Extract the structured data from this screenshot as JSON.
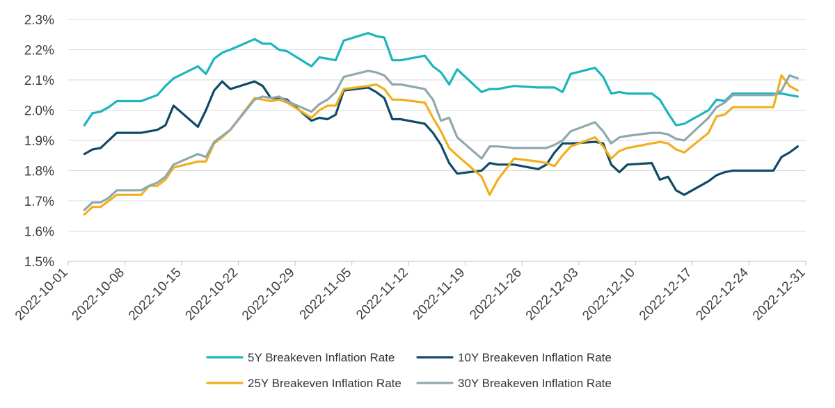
{
  "chart_data": {
    "type": "line",
    "title": "",
    "xlabel": "",
    "ylabel": "",
    "x_range": [
      "2022-10-01",
      "2022-12-31"
    ],
    "ylim": [
      1.5,
      2.3
    ],
    "y_ticks": [
      1.5,
      1.6,
      1.7,
      1.8,
      1.9,
      2.0,
      2.1,
      2.2,
      2.3
    ],
    "y_tick_labels": [
      "1.5%",
      "1.6%",
      "1.7%",
      "1.8%",
      "1.9%",
      "2.0%",
      "2.1%",
      "2.2%",
      "2.3%"
    ],
    "x_ticks": [
      "2022-10-01",
      "2022-10-08",
      "2022-10-15",
      "2022-10-22",
      "2022-10-29",
      "2022-11-05",
      "2022-11-12",
      "2022-11-19",
      "2022-11-26",
      "2022-12-03",
      "2022-12-10",
      "2022-12-17",
      "2022-12-24",
      "2022-12-31"
    ],
    "grid": "horizontal",
    "legend_position": "bottom",
    "x": [
      "2022-10-03",
      "2022-10-04",
      "2022-10-05",
      "2022-10-06",
      "2022-10-07",
      "2022-10-10",
      "2022-10-11",
      "2022-10-12",
      "2022-10-13",
      "2022-10-14",
      "2022-10-17",
      "2022-10-18",
      "2022-10-19",
      "2022-10-20",
      "2022-10-21",
      "2022-10-24",
      "2022-10-25",
      "2022-10-26",
      "2022-10-27",
      "2022-10-28",
      "2022-10-31",
      "2022-11-01",
      "2022-11-02",
      "2022-11-03",
      "2022-11-04",
      "2022-11-07",
      "2022-11-08",
      "2022-11-09",
      "2022-11-10",
      "2022-11-11",
      "2022-11-14",
      "2022-11-15",
      "2022-11-16",
      "2022-11-17",
      "2022-11-18",
      "2022-11-21",
      "2022-11-22",
      "2022-11-23",
      "2022-11-25",
      "2022-11-28",
      "2022-11-29",
      "2022-11-30",
      "2022-12-01",
      "2022-12-02",
      "2022-12-05",
      "2022-12-06",
      "2022-12-07",
      "2022-12-08",
      "2022-12-09",
      "2022-12-12",
      "2022-12-13",
      "2022-12-14",
      "2022-12-15",
      "2022-12-16",
      "2022-12-19",
      "2022-12-20",
      "2022-12-21",
      "2022-12-22",
      "2022-12-23",
      "2022-12-27",
      "2022-12-28",
      "2022-12-29",
      "2022-12-30"
    ],
    "series": [
      {
        "name": "5Y Breakeven Inflation Rate",
        "color": "#1ab5bd",
        "values": [
          1.95,
          1.99,
          1.995,
          2.01,
          2.03,
          2.03,
          2.04,
          2.05,
          2.08,
          2.105,
          2.145,
          2.12,
          2.17,
          2.19,
          2.2,
          2.235,
          2.22,
          2.22,
          2.2,
          2.195,
          2.145,
          2.175,
          2.17,
          2.165,
          2.23,
          2.255,
          2.245,
          2.24,
          2.165,
          2.165,
          2.18,
          2.145,
          2.125,
          2.085,
          2.135,
          2.06,
          2.07,
          2.07,
          2.08,
          2.075,
          2.075,
          2.075,
          2.06,
          2.12,
          2.14,
          2.11,
          2.055,
          2.06,
          2.055,
          2.055,
          2.035,
          1.99,
          1.95,
          1.955,
          2.0,
          2.035,
          2.03,
          2.055,
          2.055,
          2.055,
          2.055,
          2.05,
          2.045
        ]
      },
      {
        "name": "10Y Breakeven Inflation Rate",
        "color": "#0f4a66",
        "values": [
          1.855,
          1.87,
          1.875,
          1.9,
          1.925,
          1.925,
          1.93,
          1.935,
          1.95,
          2.015,
          1.945,
          2.0,
          2.065,
          2.095,
          2.07,
          2.095,
          2.08,
          2.04,
          2.04,
          2.035,
          1.965,
          1.975,
          1.97,
          1.985,
          2.065,
          2.075,
          2.06,
          2.04,
          1.97,
          1.97,
          1.955,
          1.925,
          1.885,
          1.825,
          1.79,
          1.8,
          1.825,
          1.82,
          1.82,
          1.805,
          1.82,
          1.86,
          1.89,
          1.89,
          1.895,
          1.89,
          1.82,
          1.795,
          1.82,
          1.825,
          1.77,
          1.78,
          1.735,
          1.72,
          1.765,
          1.785,
          1.795,
          1.8,
          1.8,
          1.8,
          1.845,
          1.86,
          1.88
        ]
      },
      {
        "name": "25Y Breakeven Inflation Rate",
        "color": "#f0b01e",
        "values": [
          1.655,
          1.68,
          1.68,
          1.7,
          1.72,
          1.72,
          1.75,
          1.75,
          1.77,
          1.81,
          1.83,
          1.83,
          1.89,
          1.91,
          1.935,
          2.04,
          2.035,
          2.03,
          2.035,
          2.025,
          1.975,
          2.0,
          2.015,
          2.015,
          2.07,
          2.08,
          2.085,
          2.07,
          2.035,
          2.035,
          2.025,
          1.975,
          1.93,
          1.875,
          1.85,
          1.78,
          1.72,
          1.77,
          1.84,
          1.83,
          1.825,
          1.815,
          1.85,
          1.88,
          1.91,
          1.88,
          1.84,
          1.865,
          1.875,
          1.89,
          1.895,
          1.89,
          1.87,
          1.86,
          1.925,
          1.98,
          1.985,
          2.01,
          2.01,
          2.01,
          2.115,
          2.08,
          2.065
        ]
      },
      {
        "name": "30Y Breakeven Inflation Rate",
        "color": "#8fa8ad",
        "values": [
          1.67,
          1.695,
          1.695,
          1.71,
          1.735,
          1.735,
          1.75,
          1.76,
          1.78,
          1.82,
          1.855,
          1.845,
          1.895,
          1.915,
          1.935,
          2.035,
          2.045,
          2.04,
          2.045,
          2.03,
          1.995,
          2.02,
          2.035,
          2.06,
          2.11,
          2.13,
          2.125,
          2.115,
          2.085,
          2.085,
          2.07,
          2.035,
          1.965,
          1.975,
          1.91,
          1.84,
          1.88,
          1.88,
          1.875,
          1.875,
          1.875,
          1.885,
          1.9,
          1.93,
          1.96,
          1.93,
          1.89,
          1.91,
          1.915,
          1.925,
          1.925,
          1.92,
          1.905,
          1.9,
          1.975,
          2.01,
          2.025,
          2.05,
          2.05,
          2.05,
          2.065,
          2.115,
          2.105
        ]
      }
    ]
  }
}
